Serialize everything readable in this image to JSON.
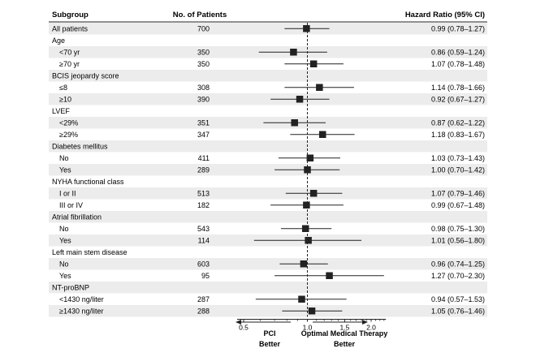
{
  "chart_data": {
    "type": "forest",
    "headers": {
      "subgroup": "Subgroup",
      "patients": "No. of Patients",
      "hr": "Hazard Ratio (95% CI)"
    },
    "rows": [
      {
        "label": "All patients",
        "n": "700",
        "hr": 0.99,
        "lo": 0.78,
        "hi": 1.27,
        "text": "0.99 (0.78–1.27)",
        "indent": false
      },
      {
        "label": "Age",
        "header": true
      },
      {
        "label": "<70 yr",
        "n": "350",
        "hr": 0.86,
        "lo": 0.59,
        "hi": 1.24,
        "text": "0.86 (0.59–1.24)",
        "indent": true
      },
      {
        "label": "≥70 yr",
        "n": "350",
        "hr": 1.07,
        "lo": 0.78,
        "hi": 1.48,
        "text": "1.07 (0.78–1.48)",
        "indent": true
      },
      {
        "label": "BCIS jeopardy score",
        "header": true
      },
      {
        "label": "≤8",
        "n": "308",
        "hr": 1.14,
        "lo": 0.78,
        "hi": 1.66,
        "text": "1.14 (0.78–1.66)",
        "indent": true
      },
      {
        "label": "≥10",
        "n": "390",
        "hr": 0.92,
        "lo": 0.67,
        "hi": 1.27,
        "text": "0.92 (0.67–1.27)",
        "indent": true
      },
      {
        "label": "LVEF",
        "header": true
      },
      {
        "label": "<29%",
        "n": "351",
        "hr": 0.87,
        "lo": 0.62,
        "hi": 1.22,
        "text": "0.87 (0.62–1.22)",
        "indent": true
      },
      {
        "label": "≥29%",
        "n": "347",
        "hr": 1.18,
        "lo": 0.83,
        "hi": 1.67,
        "text": "1.18 (0.83–1.67)",
        "indent": true
      },
      {
        "label": "Diabetes mellitus",
        "header": true
      },
      {
        "label": "No",
        "n": "411",
        "hr": 1.03,
        "lo": 0.73,
        "hi": 1.43,
        "text": "1.03 (0.73–1.43)",
        "indent": true
      },
      {
        "label": "Yes",
        "n": "289",
        "hr": 1.0,
        "lo": 0.7,
        "hi": 1.42,
        "text": "1.00 (0.70–1.42)",
        "indent": true
      },
      {
        "label": "NYHA functional class",
        "header": true
      },
      {
        "label": "I or II",
        "n": "513",
        "hr": 1.07,
        "lo": 0.79,
        "hi": 1.46,
        "text": "1.07 (0.79–1.46)",
        "indent": true
      },
      {
        "label": "III or IV",
        "n": "182",
        "hr": 0.99,
        "lo": 0.67,
        "hi": 1.48,
        "text": "0.99 (0.67–1.48)",
        "indent": true
      },
      {
        "label": "Atrial fibrillation",
        "header": true
      },
      {
        "label": "No",
        "n": "543",
        "hr": 0.98,
        "lo": 0.75,
        "hi": 1.3,
        "text": "0.98 (0.75–1.30)",
        "indent": true
      },
      {
        "label": "Yes",
        "n": "114",
        "hr": 1.01,
        "lo": 0.56,
        "hi": 1.8,
        "text": "1.01 (0.56–1.80)",
        "indent": true
      },
      {
        "label": "Left main stem disease",
        "header": true
      },
      {
        "label": "No",
        "n": "603",
        "hr": 0.96,
        "lo": 0.74,
        "hi": 1.25,
        "text": "0.96 (0.74–1.25)",
        "indent": true
      },
      {
        "label": "Yes",
        "n": "95",
        "hr": 1.27,
        "lo": 0.7,
        "hi": 2.3,
        "text": "1.27 (0.70–2.30)",
        "indent": true
      },
      {
        "label": "NT-proBNP",
        "header": true
      },
      {
        "label": "<1430 ng/liter",
        "n": "287",
        "hr": 0.94,
        "lo": 0.57,
        "hi": 1.53,
        "text": "0.94 (0.57–1.53)",
        "indent": true
      },
      {
        "label": "≥1430 ng/liter",
        "n": "288",
        "hr": 1.05,
        "lo": 0.76,
        "hi": 1.46,
        "text": "1.05 (0.76–1.46)",
        "indent": true
      }
    ],
    "xaxis": {
      "scale": "log",
      "range": [
        0.5,
        2.35
      ],
      "ticks": [
        0.5,
        1.0,
        1.5,
        2.0
      ],
      "tick_labels": [
        "0.5",
        "1.0",
        "1.5",
        "2.0"
      ],
      "reference_line": 1.0
    },
    "footer": {
      "left": [
        "PCI",
        "Better"
      ],
      "right": [
        "Optimal Medical Therapy",
        "Better"
      ]
    }
  }
}
